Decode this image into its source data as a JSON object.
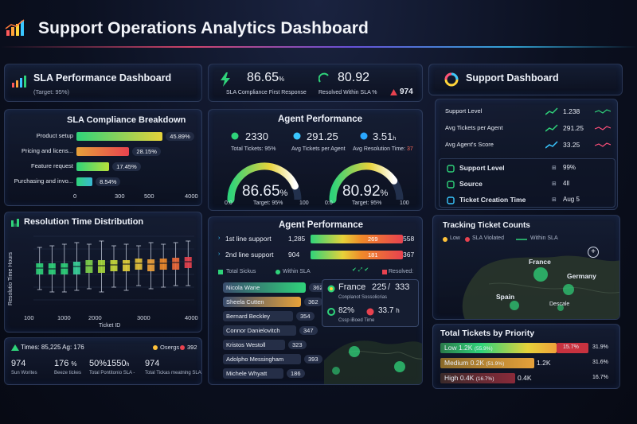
{
  "header": {
    "title": "Support Operations Analytics Dashboard"
  },
  "colors": {
    "green": "#2fd37a",
    "yellow": "#e6d23a",
    "orange": "#f08a2a",
    "red": "#e8424f",
    "cyan": "#3ac7ff",
    "pink": "#ff4f7a"
  },
  "sla_perf": {
    "title": "SLA Performance Dashboard",
    "target": "(Target: 95%)"
  },
  "top_kpis": {
    "value1": "86.65",
    "unit1": "%",
    "label1": "SLA Compliance First Response",
    "value2": "80.92",
    "label2": "Resolved Within SLA %",
    "value3": "974"
  },
  "support_dash": {
    "title": "Support Dashboard"
  },
  "sla_breakdown": {
    "title": "SLA Compliance Breakdown",
    "rows": [
      {
        "label": "Product setup",
        "pct": "45.89%",
        "value": 45.89
      },
      {
        "label": "Pricing and licens...",
        "pct": "28.15%",
        "value": 28.15
      },
      {
        "label": "Feature request",
        "pct": "17.45%",
        "value": 17.45
      },
      {
        "label": "Purchasing and invo...",
        "pct": "8.54%",
        "value": 8.54
      }
    ],
    "axis": [
      "0",
      "300",
      "500",
      "4000"
    ]
  },
  "agent_perf_top": {
    "title": "Agent Performance",
    "stat1_value": "2330",
    "stat1_label": "Total Tickets: 95%",
    "stat2_value": "291.25",
    "stat2_label": "Avg Tickets per Agent",
    "stat3_value": "3.51",
    "stat3_sup": "h",
    "stat3_label": "Avg Resolution Time:",
    "stat3_label_value": "37",
    "gauge1_value": "86.65",
    "gauge1_unit": "%",
    "gauge1_fraction": 0.8665,
    "gauge2_value": "80.92",
    "gauge2_unit": "%",
    "gauge2_fraction": 0.8092,
    "gauge_min": "0:0",
    "gauge_max": "100",
    "gauge1_target": "Target: 95%",
    "gauge2_target": "Target: 95%"
  },
  "resolution": {
    "title": "Resolution Time Distribution",
    "ylabel": "Resolutio Time Hours",
    "xlabel": "Ticket ID",
    "xticks": [
      "100",
      "1000",
      "2000",
      "3000",
      "4000"
    ]
  },
  "resolution_boxplot": {
    "type": "box",
    "series": [
      {
        "median": 0.52,
        "q1": 0.44,
        "q3": 0.58,
        "lo": 0.25,
        "hi": 0.78
      },
      {
        "median": 0.51,
        "q1": 0.44,
        "q3": 0.58,
        "lo": 0.22,
        "hi": 0.8
      },
      {
        "median": 0.52,
        "q1": 0.44,
        "q3": 0.58,
        "lo": 0.22,
        "hi": 0.82
      },
      {
        "median": 0.54,
        "q1": 0.44,
        "q3": 0.6,
        "lo": 0.24,
        "hi": 0.84
      },
      {
        "median": 0.55,
        "q1": 0.46,
        "q3": 0.62,
        "lo": 0.26,
        "hi": 0.82
      },
      {
        "median": 0.55,
        "q1": 0.46,
        "q3": 0.62,
        "lo": 0.22,
        "hi": 0.86
      },
      {
        "median": 0.56,
        "q1": 0.48,
        "q3": 0.62,
        "lo": 0.28,
        "hi": 0.8
      },
      {
        "median": 0.57,
        "q1": 0.48,
        "q3": 0.62,
        "lo": 0.24,
        "hi": 0.82
      },
      {
        "median": 0.58,
        "q1": 0.5,
        "q3": 0.64,
        "lo": 0.3,
        "hi": 0.8
      },
      {
        "median": 0.57,
        "q1": 0.48,
        "q3": 0.63,
        "lo": 0.26,
        "hi": 0.84
      },
      {
        "median": 0.58,
        "q1": 0.5,
        "q3": 0.64,
        "lo": 0.28,
        "hi": 0.82
      },
      {
        "median": 0.59,
        "q1": 0.5,
        "q3": 0.65,
        "lo": 0.3,
        "hi": 0.84
      },
      {
        "median": 0.6,
        "q1": 0.52,
        "q3": 0.66,
        "lo": 0.3,
        "hi": 0.86
      }
    ]
  },
  "bottom_left": {
    "line1": "Times: 85,225 Ag: 176",
    "legend1": "Osergs",
    "legend1_value": "392",
    "v1": "974",
    "l1": "Sun Worites",
    "v2": "176",
    "v2_unit": "%",
    "l2": "Beeze tickes",
    "v3": "50%",
    "v3b": "1550",
    "v3_unit": "h",
    "l3": "Total Pontitonio SLA -",
    "v4": "974",
    "l4": "Total Tickas meatning SLA"
  },
  "agent_perf_table": {
    "title": "Agent Performance",
    "tiers": [
      {
        "label": "1st line support",
        "count": "1,285",
        "bar_value": "269",
        "total": "558"
      },
      {
        "label": "2nd line support",
        "count": "904",
        "bar_value": "181",
        "total": "367"
      }
    ],
    "legend": {
      "total": "Total Sickus",
      "within": "Within SLA",
      "resolved": "Resolved:"
    },
    "agents": [
      {
        "name": "Nicola Wane",
        "value": "362"
      },
      {
        "name": "Sheela Cutten",
        "value": "362"
      },
      {
        "name": "Bernard Beckley",
        "value": "354"
      },
      {
        "name": "Connor Danielovitch",
        "value": "347"
      },
      {
        "name": "Kristos Westoll",
        "value": "323"
      },
      {
        "name": "Adolpho Messingham",
        "value": "393"
      },
      {
        "name": "Michele Whyatt",
        "value": "186"
      }
    ],
    "popup": {
      "country": "France",
      "v1": "225",
      "v2": "333",
      "sub": "Conplanot Sossolicrias",
      "pct": "82%",
      "time": "33.7",
      "time_unit": "h",
      "sub2": "Cssp iBoed Time"
    }
  },
  "right_metrics": {
    "rows": [
      {
        "label": "Support Level",
        "value": "1.238"
      },
      {
        "label": "Avg Tickets per Agent",
        "value": "291.25"
      },
      {
        "label": "Avg Agent's Score",
        "value": "33.25"
      }
    ],
    "details": [
      {
        "label": "Support Level",
        "value": "99%"
      },
      {
        "label": "Source",
        "value": "4ll"
      },
      {
        "label": "Ticket Creation Time",
        "value": "Aug 5"
      }
    ]
  },
  "tracking": {
    "title": "Tracking Ticket Counts",
    "legend": [
      "Low",
      "SLA Violated",
      "Within SLA"
    ],
    "places": [
      "France",
      "Germany",
      "Spain",
      "Descale"
    ]
  },
  "priority": {
    "title": "Total Tickets by Priority",
    "rows": [
      {
        "label": "Low",
        "value": "1.2K",
        "pct": "(55.9%)",
        "red": "15.7%",
        "end": "31.9%"
      },
      {
        "label": "Medium",
        "value": "0.2K",
        "pct": "(51.9%)",
        "mid": "1.2K",
        "end": "31.6%"
      },
      {
        "label": "High",
        "value": "0.4K",
        "pct": "(16.7%)",
        "mid": "0.4K",
        "end": "16.7%"
      }
    ]
  }
}
